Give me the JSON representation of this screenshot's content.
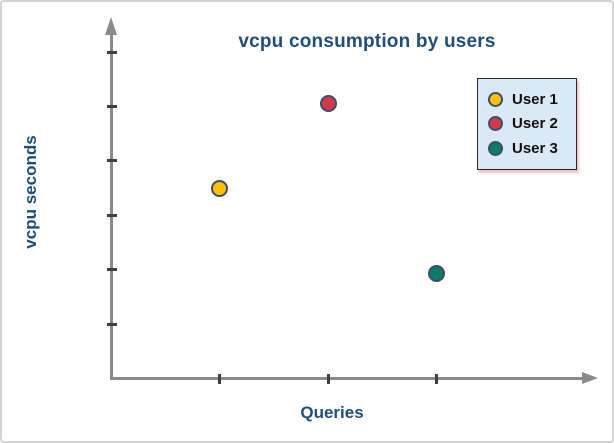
{
  "chart_data": {
    "type": "scatter",
    "title": "vcpu consumption by users",
    "xlabel": "Queries",
    "ylabel": "vcpu seconds",
    "title_color": "#1F4E79",
    "axis_color": "#8a8a8a",
    "tick_color": "#3f3f3f",
    "x_tick_positions": [
      1,
      2,
      3
    ],
    "y_tick_positions": [
      1,
      2,
      3,
      4,
      5,
      6
    ],
    "x_tick_labels_shown": false,
    "y_tick_labels_shown": false,
    "xlim": [
      0,
      4.4
    ],
    "ylim": [
      0,
      6.7
    ],
    "grid": false,
    "legend_position": "top-right",
    "series": [
      {
        "name": "User 1",
        "color": "#FFC000",
        "points": [
          {
            "x": 1.0,
            "y": 3.5
          }
        ]
      },
      {
        "name": "User 2",
        "color": "#D23A4C",
        "points": [
          {
            "x": 2.0,
            "y": 5.05
          }
        ]
      },
      {
        "name": "User 3",
        "color": "#0E7C66",
        "points": [
          {
            "x": 3.0,
            "y": 1.93
          }
        ]
      }
    ]
  },
  "legend": {
    "items": [
      {
        "label": "User 1",
        "color": "#FFC000"
      },
      {
        "label": "User 2",
        "color": "#D23A4C"
      },
      {
        "label": "User 3",
        "color": "#0E7C66"
      }
    ]
  }
}
